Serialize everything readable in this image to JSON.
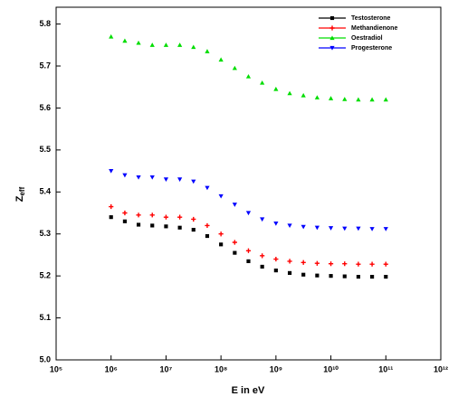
{
  "chart_data": {
    "type": "scatter",
    "x_label": "E in eV",
    "y_label": {
      "main": "Z",
      "sub": "eff"
    },
    "log_x": true,
    "xlim": [
      100000,
      1000000000000
    ],
    "xticks": [
      {
        "value": 100000,
        "label": "10⁵"
      },
      {
        "value": 1000000,
        "label": "10⁶"
      },
      {
        "value": 10000000,
        "label": "10⁷"
      },
      {
        "value": 100000000,
        "label": "10⁸"
      },
      {
        "value": 1000000000,
        "label": "10⁹"
      },
      {
        "value": 10000000000,
        "label": "10¹⁰"
      },
      {
        "value": 100000000000,
        "label": "10¹¹"
      },
      {
        "value": 1000000000000,
        "label": "10¹²"
      }
    ],
    "ylim": [
      5.0,
      5.84
    ],
    "yticks": [
      {
        "value": 5.0,
        "label": "5.0"
      },
      5.1,
      5.2,
      5.3,
      5.4,
      5.5,
      5.6,
      5.7,
      5.8
    ],
    "legend": "top-right",
    "x": [
      1000000,
      1780000,
      3160000,
      5620000,
      10000000,
      17800000,
      31600000,
      56200000,
      100000000,
      178000000,
      316000000,
      562000000,
      1000000000,
      1780000000,
      3160000000,
      5620000000,
      10000000000,
      17800000000,
      31600000000,
      56200000000,
      100000000000
    ],
    "series": [
      {
        "name": "Testosterone",
        "color": "#000000",
        "marker": "square",
        "values": [
          5.34,
          5.33,
          5.322,
          5.32,
          5.318,
          5.315,
          5.31,
          5.295,
          5.275,
          5.255,
          5.235,
          5.222,
          5.213,
          5.207,
          5.203,
          5.201,
          5.2,
          5.199,
          5.198,
          5.198,
          5.198
        ]
      },
      {
        "name": "Methandienone",
        "color": "#ff0000",
        "marker": "plus",
        "values": [
          5.365,
          5.35,
          5.345,
          5.345,
          5.34,
          5.34,
          5.335,
          5.32,
          5.3,
          5.28,
          5.26,
          5.248,
          5.24,
          5.235,
          5.232,
          5.23,
          5.229,
          5.229,
          5.228,
          5.228,
          5.228
        ]
      },
      {
        "name": "Oestradiol",
        "color": "#00dd00",
        "marker": "triangle-up",
        "values": [
          5.77,
          5.76,
          5.755,
          5.75,
          5.75,
          5.75,
          5.745,
          5.735,
          5.715,
          5.695,
          5.675,
          5.66,
          5.645,
          5.635,
          5.63,
          5.625,
          5.623,
          5.621,
          5.62,
          5.62,
          5.62
        ]
      },
      {
        "name": "Progesterone",
        "color": "#0000ff",
        "marker": "triangle-down",
        "values": [
          5.45,
          5.44,
          5.435,
          5.435,
          5.43,
          5.43,
          5.425,
          5.41,
          5.39,
          5.37,
          5.35,
          5.335,
          5.325,
          5.32,
          5.317,
          5.315,
          5.314,
          5.313,
          5.313,
          5.312,
          5.312
        ]
      }
    ]
  }
}
